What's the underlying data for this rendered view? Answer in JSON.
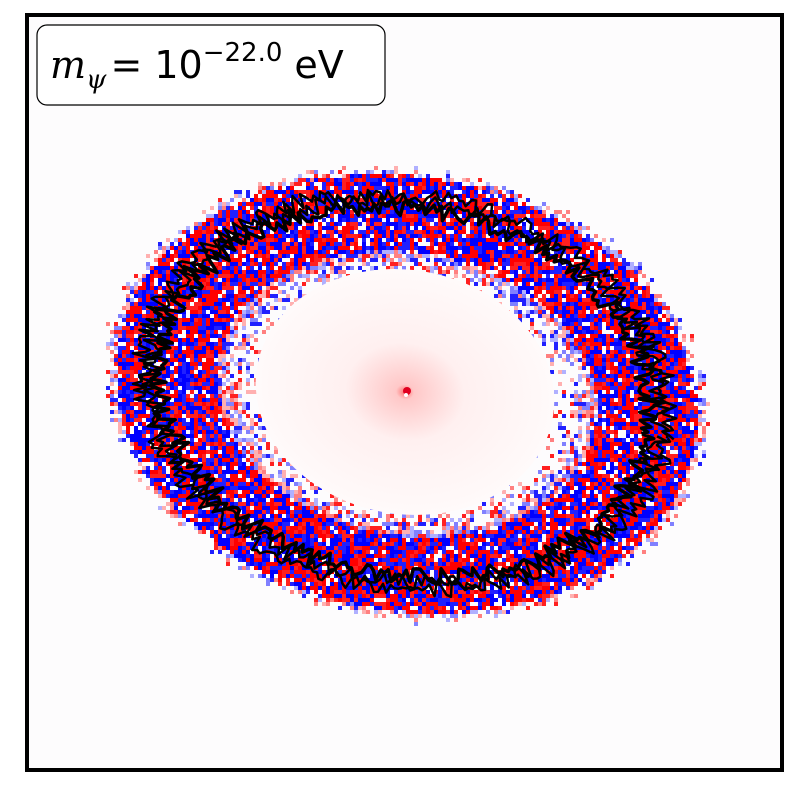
{
  "label": {
    "symbol": "m",
    "subscript": "ψ",
    "equals_base": "= 10",
    "exponent": "−22.0",
    "unit": "eV"
  }
}
